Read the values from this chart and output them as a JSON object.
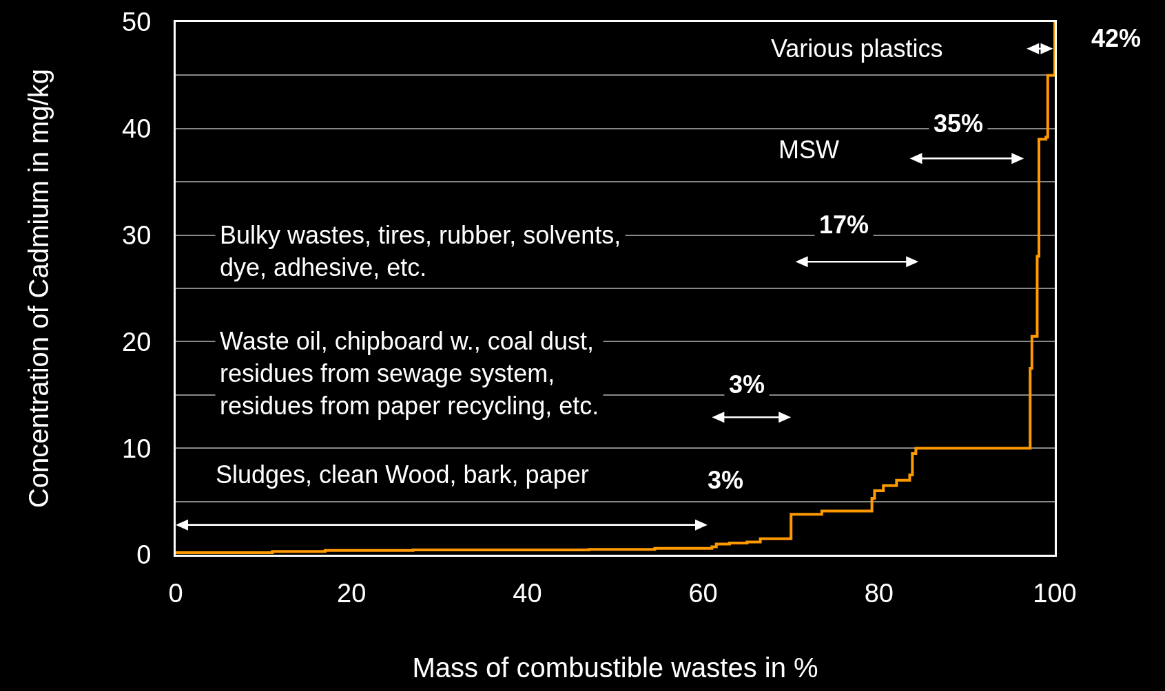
{
  "chart_data": {
    "type": "step",
    "xlabel": "Mass of combustible wastes in %",
    "ylabel": "Concentration of Cadmium in mg/kg",
    "series": [
      {
        "color": "#ff9900",
        "x": [
          0,
          11,
          17,
          27,
          47,
          54.5,
          61,
          61.5,
          63,
          65,
          66.5,
          69.8,
          70,
          73.5,
          79.2,
          79.5,
          80.5,
          82,
          83.5,
          83.8,
          84.2,
          97,
          97.2,
          97.4,
          98,
          98.2,
          99,
          99.2,
          99.9,
          100
        ],
        "values": [
          0.2,
          0.3,
          0.4,
          0.45,
          0.5,
          0.6,
          0.75,
          1.0,
          1.1,
          1.2,
          1.5,
          1.5,
          3.8,
          4.1,
          5.3,
          6.0,
          6.5,
          7.0,
          7.5,
          9.5,
          10,
          10,
          17.5,
          20.5,
          28,
          39,
          39.2,
          45,
          45,
          50
        ]
      }
    ],
    "xlim": [
      0,
      100
    ],
    "xticks": [
      0,
      20,
      40,
      60,
      80,
      100
    ],
    "ylim": [
      0,
      50
    ],
    "yticks": [
      0,
      {
        "value": 5,
        "label": null
      },
      10,
      {
        "value": 15,
        "label": null
      },
      20,
      {
        "value": 25,
        "label": null
      },
      30,
      {
        "value": 35,
        "label": null
      },
      40,
      {
        "value": 45,
        "label": null
      },
      50
    ],
    "grid": "y",
    "annotations": [
      "Various plastics",
      "42%",
      "35%",
      "MSW",
      "17%",
      "Bulky wastes, tires, rubber, solvents,\ndye, adhesive, etc.",
      "Waste oil, chipboard w., coal dust,\nresidues from sewage system,\nresidues from paper recycling, etc.",
      "3%",
      "Sludges, clean Wood, bark, paper",
      "3%"
    ]
  }
}
